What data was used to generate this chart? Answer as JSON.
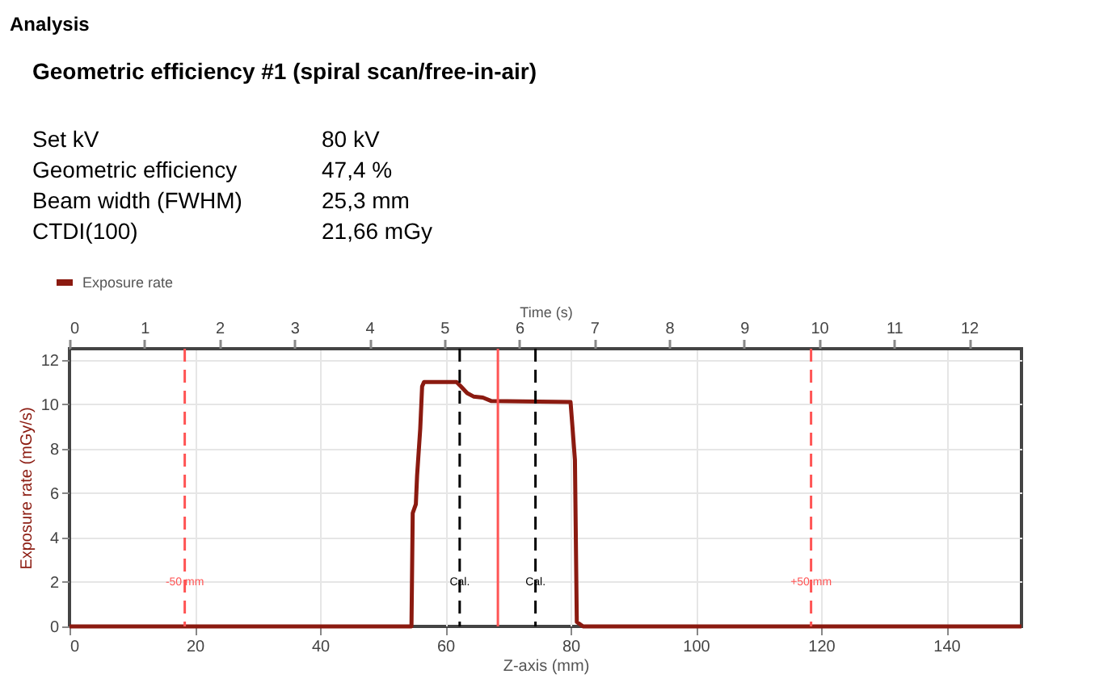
{
  "chart_data": {
    "type": "line",
    "title": "Geometric efficiency #1 (spiral scan/free-in-air)",
    "annotations": [
      "Analysis",
      "Set kV",
      "80 kV",
      "Geometric efficiency",
      "47,4 %",
      "Beam width (FWHM)",
      "25,3 mm",
      "CTDI(100)",
      "21,66 mGy"
    ],
    "xlabel": "Z-axis (mm)",
    "ylabel": "Exposure rate (mGy/s)",
    "x2label": "Time (s)",
    "x": [
      0,
      54.6,
      54.8,
      55.3,
      55.5,
      56.0,
      56.3,
      56.6,
      61.8,
      62.5,
      63.5,
      64.5,
      66.0,
      67.3,
      80.0,
      80.3,
      80.7,
      81.0,
      82.0,
      152
    ],
    "series": [
      {
        "name": "Exposure rate",
        "color": "#8b1a10",
        "values": [
          0,
          0,
          5.1,
          5.5,
          6.8,
          8.9,
          10.8,
          11.0,
          11.0,
          10.8,
          10.5,
          10.35,
          10.3,
          10.15,
          10.1,
          9.0,
          7.5,
          0.2,
          0,
          0
        ]
      }
    ],
    "xlim": [
      0,
      152
    ],
    "xticks": [
      0,
      20,
      40,
      60,
      80,
      100,
      120,
      140
    ],
    "x2lim": [
      0,
      12.7
    ],
    "x2ticks": [
      0,
      1,
      2,
      3,
      4,
      5,
      6,
      7,
      8,
      9,
      10,
      11,
      12
    ],
    "ylim": [
      0,
      12.5
    ],
    "yticks": [
      0,
      2,
      4,
      6,
      8,
      10,
      12
    ],
    "ref_lines": [
      {
        "axis": "x",
        "value": 18.4,
        "label": "-50 mm",
        "color": "#ff5555",
        "line_style": "dashed"
      },
      {
        "axis": "x",
        "value": 62.3,
        "label": "Cal.",
        "color": "#000000",
        "line_style": "dashed"
      },
      {
        "axis": "x",
        "value": 68.4,
        "label": null,
        "color": "#ff5555",
        "line_style": "solid"
      },
      {
        "axis": "x",
        "value": 74.4,
        "label": "Cal.",
        "color": "#000000",
        "line_style": "dashed"
      },
      {
        "axis": "x",
        "value": 118.4,
        "label": "+50 mm",
        "color": "#ff5555",
        "line_style": "dashed"
      }
    ],
    "grid": true,
    "legend": "top left",
    "marker": "none",
    "line_style": "solid"
  }
}
